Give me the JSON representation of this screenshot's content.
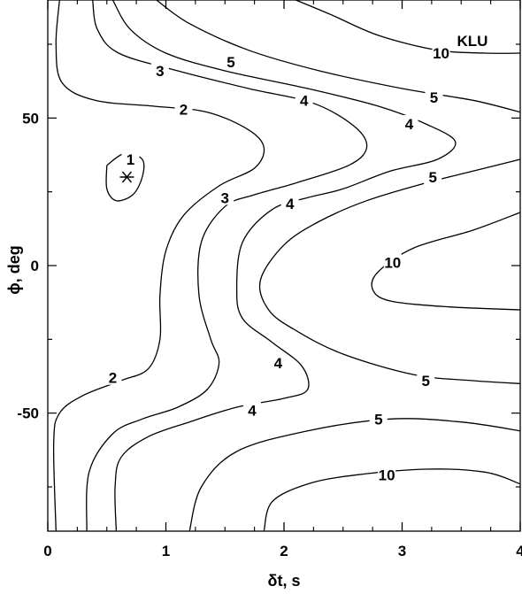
{
  "chart_data": {
    "type": "contour",
    "title": "",
    "panel_label": "KLU",
    "xlabel": "δt, s",
    "ylabel": "ϕ, deg",
    "xlim": [
      0,
      4
    ],
    "ylim": [
      -90,
      90
    ],
    "x_ticks": [
      0,
      1,
      2,
      3,
      4
    ],
    "x_tick_labels": [
      "0",
      "1",
      "2",
      "3",
      "4"
    ],
    "y_ticks": [
      -50,
      0,
      50
    ],
    "y_tick_labels": [
      "-50",
      "0",
      "50"
    ],
    "grid": false,
    "minimum_marker": {
      "x": 0.67,
      "y": 30,
      "symbol": "*"
    },
    "contours": [
      {
        "level": "1",
        "label": "1",
        "label_at": [
          0.7,
          36
        ],
        "points": [
          [
            0.5,
            34
          ],
          [
            0.65,
            38
          ],
          [
            0.8,
            36
          ],
          [
            0.8,
            30
          ],
          [
            0.72,
            24
          ],
          [
            0.58,
            22
          ],
          [
            0.5,
            26
          ],
          [
            0.5,
            34
          ]
        ]
      },
      {
        "level": "2",
        "label": "2",
        "label_at": [
          1.15,
          53
        ],
        "points": [
          [
            0.1,
            90
          ],
          [
            0.07,
            75
          ],
          [
            0.12,
            62
          ],
          [
            0.4,
            56
          ],
          [
            0.9,
            54
          ],
          [
            1.35,
            52
          ],
          [
            1.7,
            46
          ],
          [
            1.83,
            40
          ],
          [
            1.75,
            33
          ],
          [
            1.45,
            27
          ],
          [
            1.15,
            17
          ],
          [
            1.0,
            5
          ],
          [
            0.95,
            -10
          ],
          [
            0.95,
            -25
          ],
          [
            0.85,
            -35
          ],
          [
            0.62,
            -39
          ],
          [
            0.3,
            -44
          ],
          [
            0.1,
            -50
          ],
          [
            0.05,
            -60
          ],
          [
            0.07,
            -90
          ]
        ]
      },
      {
        "level": "2b",
        "label": "2",
        "label_at": [
          0.55,
          -38
        ],
        "points": []
      },
      {
        "level": "3",
        "label": "3",
        "label_at": [
          0.95,
          66
        ],
        "points": [
          [
            0.38,
            90
          ],
          [
            0.42,
            80
          ],
          [
            0.6,
            72
          ],
          [
            1.1,
            66
          ],
          [
            1.7,
            60
          ],
          [
            2.25,
            55
          ],
          [
            2.6,
            47
          ],
          [
            2.7,
            40
          ],
          [
            2.55,
            34
          ],
          [
            2.1,
            28
          ],
          [
            1.75,
            24
          ],
          [
            1.5,
            20
          ],
          [
            1.3,
            8
          ],
          [
            1.28,
            -10
          ],
          [
            1.38,
            -25
          ],
          [
            1.45,
            -33
          ],
          [
            1.35,
            -42
          ],
          [
            1.1,
            -48
          ],
          [
            0.8,
            -52
          ],
          [
            0.55,
            -57
          ],
          [
            0.35,
            -70
          ],
          [
            0.33,
            -90
          ]
        ]
      },
      {
        "level": "3b",
        "label": "3",
        "label_at": [
          1.5,
          23
        ],
        "points": []
      },
      {
        "level": "4",
        "label": "4",
        "label_at": [
          2.17,
          56
        ],
        "points": [
          [
            0.55,
            90
          ],
          [
            0.7,
            80
          ],
          [
            1.0,
            72
          ],
          [
            1.5,
            66
          ],
          [
            2.2,
            60
          ],
          [
            2.8,
            54
          ],
          [
            3.2,
            48
          ],
          [
            3.45,
            42
          ],
          [
            3.3,
            36
          ],
          [
            2.9,
            32
          ],
          [
            2.5,
            26
          ],
          [
            2.2,
            23
          ],
          [
            1.9,
            19
          ],
          [
            1.65,
            8
          ],
          [
            1.6,
            -8
          ],
          [
            1.65,
            -18
          ],
          [
            1.9,
            -26
          ],
          [
            2.15,
            -34
          ],
          [
            2.2,
            -42
          ],
          [
            2.0,
            -45
          ],
          [
            1.6,
            -48
          ],
          [
            1.2,
            -53
          ],
          [
            0.85,
            -58
          ],
          [
            0.62,
            -65
          ],
          [
            0.57,
            -75
          ],
          [
            0.58,
            -90
          ]
        ]
      },
      {
        "level": "4b",
        "label": "4",
        "label_at": [
          3.06,
          48
        ],
        "points": []
      },
      {
        "level": "4c",
        "label": "4",
        "label_at": [
          2.05,
          21
        ],
        "points": []
      },
      {
        "level": "4d",
        "label": "4",
        "label_at": [
          1.95,
          -33
        ],
        "points": []
      },
      {
        "level": "4e",
        "label": "4",
        "label_at": [
          1.73,
          -49
        ],
        "points": []
      },
      {
        "level": "5",
        "label": "5",
        "label_at": [
          1.55,
          69
        ],
        "points": [
          [
            0.92,
            90
          ],
          [
            1.2,
            82
          ],
          [
            1.7,
            73
          ],
          [
            2.3,
            66
          ],
          [
            3.0,
            60
          ],
          [
            3.6,
            56
          ],
          [
            4.0,
            52
          ]
        ]
      },
      {
        "level": "5b",
        "label": "5",
        "label_at": [
          3.27,
          57
        ],
        "points": []
      },
      {
        "level": "5c",
        "label": "5",
        "label_at": [
          3.26,
          30
        ],
        "points": [
          [
            4.0,
            36
          ],
          [
            3.6,
            32
          ],
          [
            3.2,
            28
          ],
          [
            2.7,
            22
          ],
          [
            2.3,
            15
          ],
          [
            2.0,
            7
          ],
          [
            1.8,
            -5
          ],
          [
            1.87,
            -15
          ],
          [
            2.1,
            -22
          ],
          [
            2.5,
            -30
          ],
          [
            3.1,
            -37
          ],
          [
            3.6,
            -39
          ],
          [
            4.0,
            -40
          ]
        ]
      },
      {
        "level": "5d",
        "label": "5",
        "label_at": [
          3.2,
          -39
        ],
        "points": []
      },
      {
        "level": "5e",
        "label": "5",
        "label_at": [
          2.8,
          -52
        ],
        "points": [
          [
            1.2,
            -90
          ],
          [
            1.3,
            -75
          ],
          [
            1.6,
            -63
          ],
          [
            2.2,
            -56
          ],
          [
            2.9,
            -52
          ],
          [
            3.5,
            -53
          ],
          [
            4.0,
            -56
          ]
        ]
      },
      {
        "level": "10",
        "label": "10",
        "label_at": [
          3.33,
          72
        ],
        "points": [
          [
            2.1,
            90
          ],
          [
            2.4,
            85
          ],
          [
            2.8,
            78
          ],
          [
            3.3,
            73
          ],
          [
            3.7,
            72
          ],
          [
            4.0,
            72
          ]
        ]
      },
      {
        "level": "10b",
        "label": "10",
        "label_at": [
          2.92,
          1
        ],
        "points": [
          [
            4.0,
            18
          ],
          [
            3.6,
            12
          ],
          [
            3.1,
            6
          ],
          [
            2.8,
            -2
          ],
          [
            2.75,
            -8
          ],
          [
            2.9,
            -12
          ],
          [
            3.4,
            -14
          ],
          [
            4.0,
            -15
          ]
        ]
      },
      {
        "level": "10c",
        "label": "10",
        "label_at": [
          2.87,
          -71
        ],
        "points": [
          [
            1.83,
            -90
          ],
          [
            1.9,
            -80
          ],
          [
            2.2,
            -74
          ],
          [
            2.6,
            -71
          ],
          [
            3.2,
            -69
          ],
          [
            3.7,
            -70
          ],
          [
            4.0,
            -74
          ]
        ]
      }
    ]
  }
}
